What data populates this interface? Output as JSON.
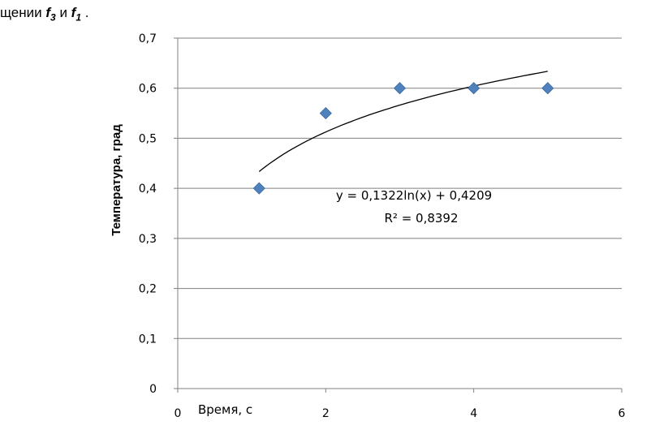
{
  "caption": {
    "prefix": "щении ",
    "var1": "f",
    "sub1": "3",
    "mid": " и ",
    "var2": "f",
    "sub2": "1",
    "suffix": " ."
  },
  "chart_data": {
    "type": "scatter",
    "title": "",
    "xlabel": "Время, с",
    "ylabel": "Температура, град",
    "xlim": [
      0,
      6
    ],
    "ylim": [
      0,
      0.7
    ],
    "x_ticks": [
      "0",
      "2",
      "4",
      "6"
    ],
    "y_ticks": [
      "0",
      "0,1",
      "0,2",
      "0,3",
      "0,4",
      "0,5",
      "0,6",
      "0,7"
    ],
    "grid": "horizontal",
    "series": [
      {
        "x": [
          1.1,
          2.0,
          3.0,
          4.0,
          5.0
        ],
        "y": [
          0.4,
          0.55,
          0.6,
          0.6,
          0.6
        ],
        "color": "#4f81bd",
        "marker": "diamond"
      }
    ],
    "trendline": {
      "type": "logarithmic",
      "a": 0.1322,
      "b": 0.4209,
      "x_range": [
        1.1,
        5.0
      ],
      "equation": "y = 0,1322ln(x) + 0,4209",
      "r2": "R² = 0,8392"
    }
  }
}
